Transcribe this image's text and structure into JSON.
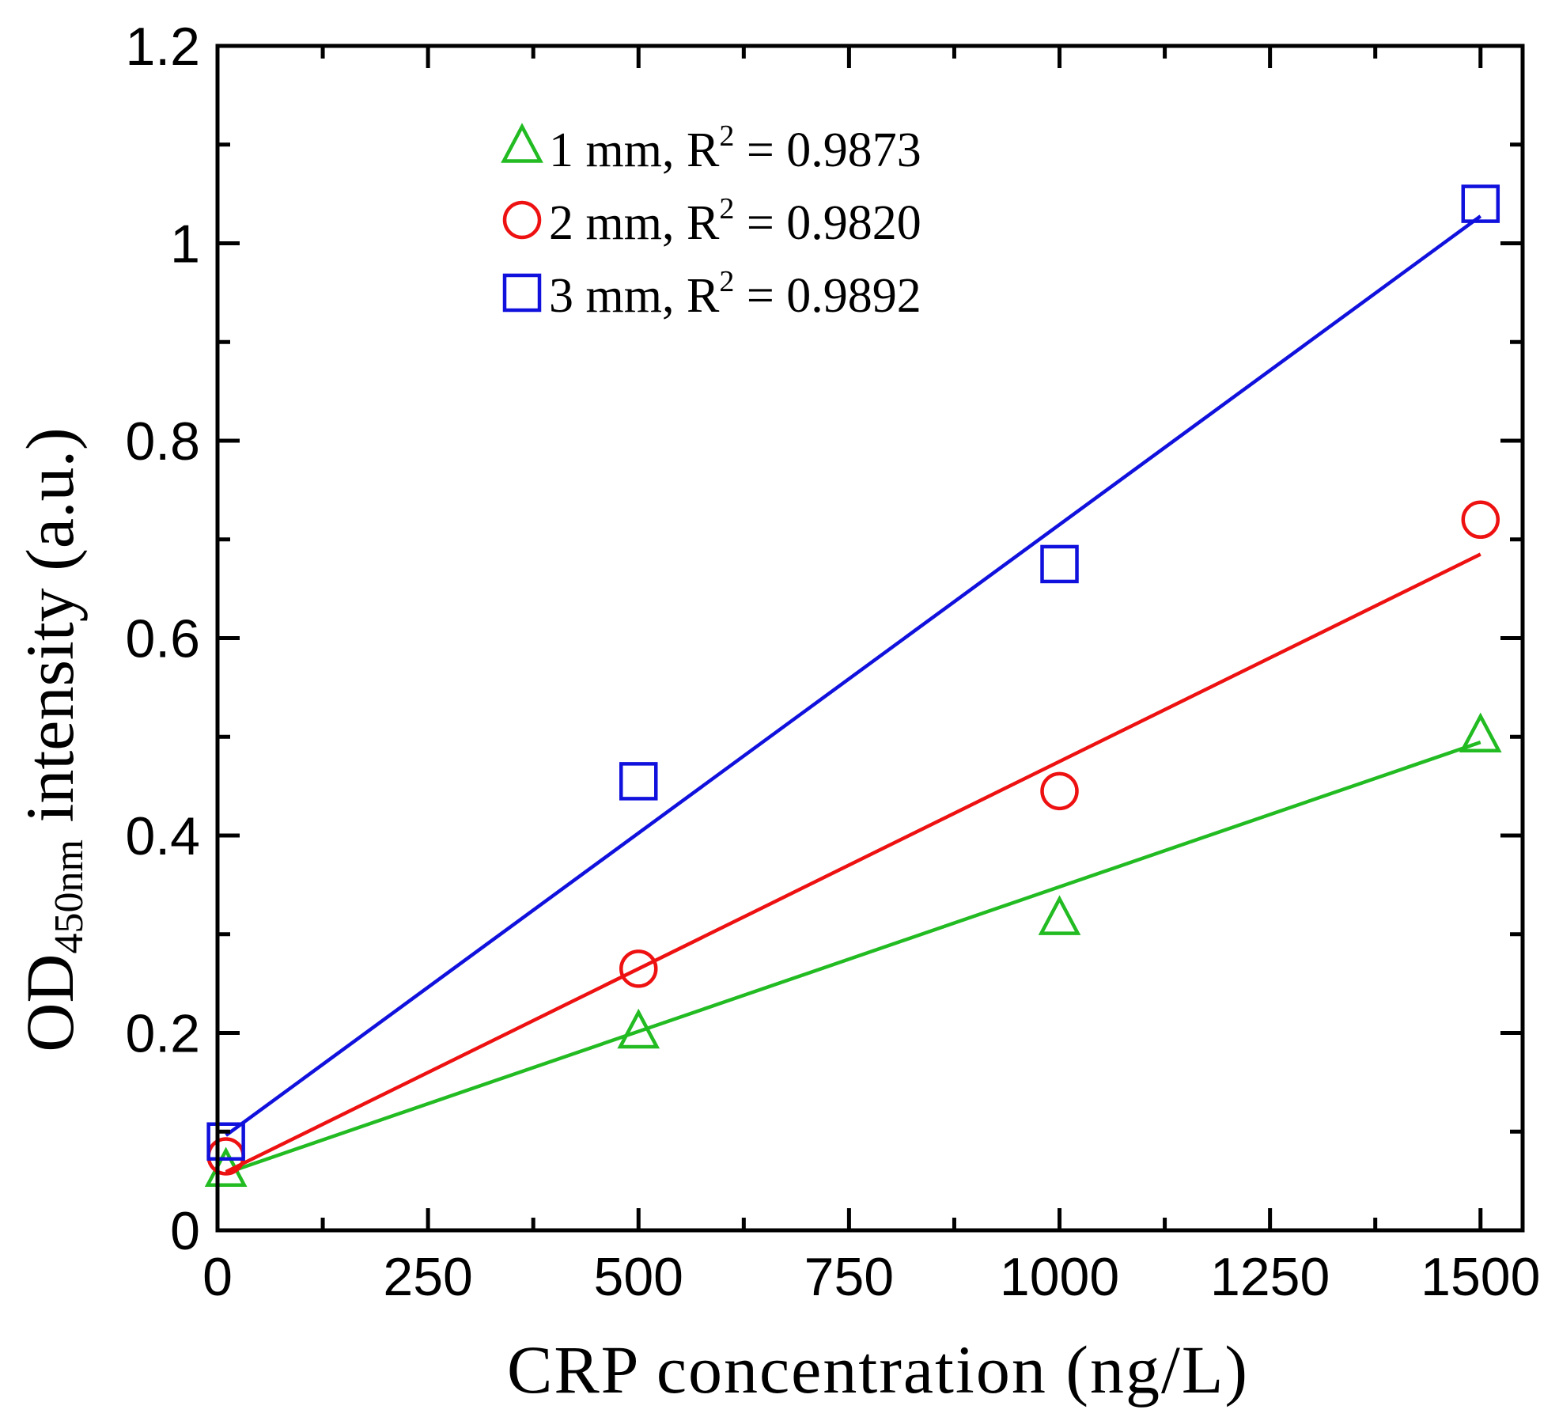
{
  "chart_data": {
    "type": "scatter",
    "xlabel": "CRP concentration (ng/L)",
    "ylabel": {
      "main": "OD",
      "subscript": "450nm",
      "rest": " intensity (a.u.)"
    },
    "xlim": [
      0,
      1550
    ],
    "ylim": [
      0,
      1.2
    ],
    "x_ticks": [
      0,
      250,
      500,
      750,
      1000,
      1250,
      1500
    ],
    "y_ticks": [
      0,
      0.2,
      0.4,
      0.6,
      0.8,
      1,
      1.2
    ],
    "x_tick_labels": [
      "0",
      "250",
      "500",
      "750",
      "1000",
      "1250",
      "1500"
    ],
    "y_tick_labels": [
      "0",
      "0.2",
      "0.4",
      "0.6",
      "0.8",
      "1",
      "1.2"
    ],
    "grid": false,
    "legend_position": "top-left",
    "series": [
      {
        "name": "1 mm",
        "label": "1 mm, R",
        "r2": "0.9873",
        "marker": "triangle",
        "color": "#22bb22",
        "x": [
          10,
          500,
          1000,
          1500
        ],
        "y": [
          0.06,
          0.2,
          0.315,
          0.5
        ],
        "fit": {
          "slope": 0.000293,
          "intercept": 0.055
        }
      },
      {
        "name": "2 mm",
        "label": "2 mm, R",
        "r2": "0.9820",
        "marker": "circle",
        "color": "#ee1111",
        "x": [
          10,
          500,
          1000,
          1500
        ],
        "y": [
          0.075,
          0.265,
          0.445,
          0.72
        ],
        "fit": {
          "slope": 0.00042,
          "intercept": 0.055
        }
      },
      {
        "name": "3 mm",
        "label": "3 mm, R",
        "r2": "0.9892",
        "marker": "square",
        "color": "#1111dd",
        "x": [
          10,
          500,
          1000,
          1500
        ],
        "y": [
          0.09,
          0.455,
          0.675,
          1.04
        ],
        "fit": {
          "slope": 0.000625,
          "intercept": 0.09
        }
      }
    ],
    "r2_prefix": "2",
    "r2_equals": " = "
  }
}
